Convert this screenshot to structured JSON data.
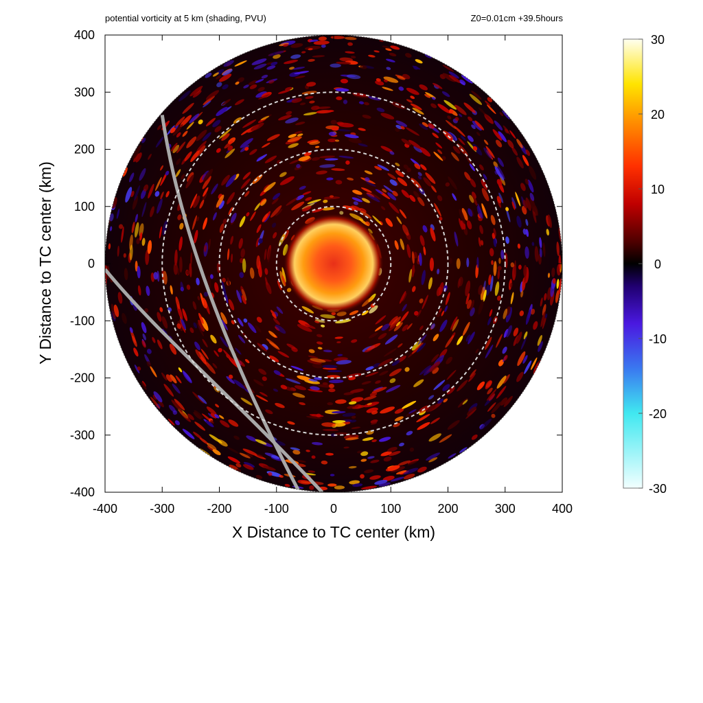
{
  "header": {
    "title": "potential vorticity at 5 km (shading, PVU)",
    "run_info": "Z0=0.01cm  +39.5hours"
  },
  "chart_data": {
    "type": "heatmap",
    "title": "potential vorticity at 5 km (shading, PVU)",
    "subtitle": "Z0=0.01cm  +39.5hours",
    "xlabel": "X Distance to TC center (km)",
    "ylabel": "Y Distance to TC center (km)",
    "xlim": [
      -400,
      400
    ],
    "ylim": [
      -400,
      400
    ],
    "x_ticks": [
      -400,
      -300,
      -200,
      -100,
      0,
      100,
      200,
      300,
      400
    ],
    "y_ticks": [
      -400,
      -300,
      -200,
      -100,
      0,
      100,
      200,
      300,
      400
    ],
    "domain_radius_km": 400,
    "range_rings_km": [
      100,
      200,
      300
    ],
    "colorbar": {
      "min": -30,
      "max": 30,
      "ticks": [
        30,
        20,
        10,
        0,
        -10,
        -20,
        -30
      ],
      "stops": [
        {
          "value": -30,
          "color": "#f2ffff"
        },
        {
          "value": -20,
          "color": "#40e8f0"
        },
        {
          "value": -14,
          "color": "#3a78f0"
        },
        {
          "value": -8,
          "color": "#4a18e0"
        },
        {
          "value": -3,
          "color": "#200070"
        },
        {
          "value": 0,
          "color": "#000000"
        },
        {
          "value": 3,
          "color": "#500000"
        },
        {
          "value": 8,
          "color": "#c00000"
        },
        {
          "value": 13,
          "color": "#ff3000"
        },
        {
          "value": 19,
          "color": "#ff9000"
        },
        {
          "value": 24,
          "color": "#ffe400"
        },
        {
          "value": 30,
          "color": "#fffff0"
        }
      ]
    },
    "grid": false,
    "legend": "colorbar-right",
    "colors": {
      "background_field": "#1a0000",
      "ring": "#d8d8d8",
      "track": "#a8a8a8"
    }
  }
}
